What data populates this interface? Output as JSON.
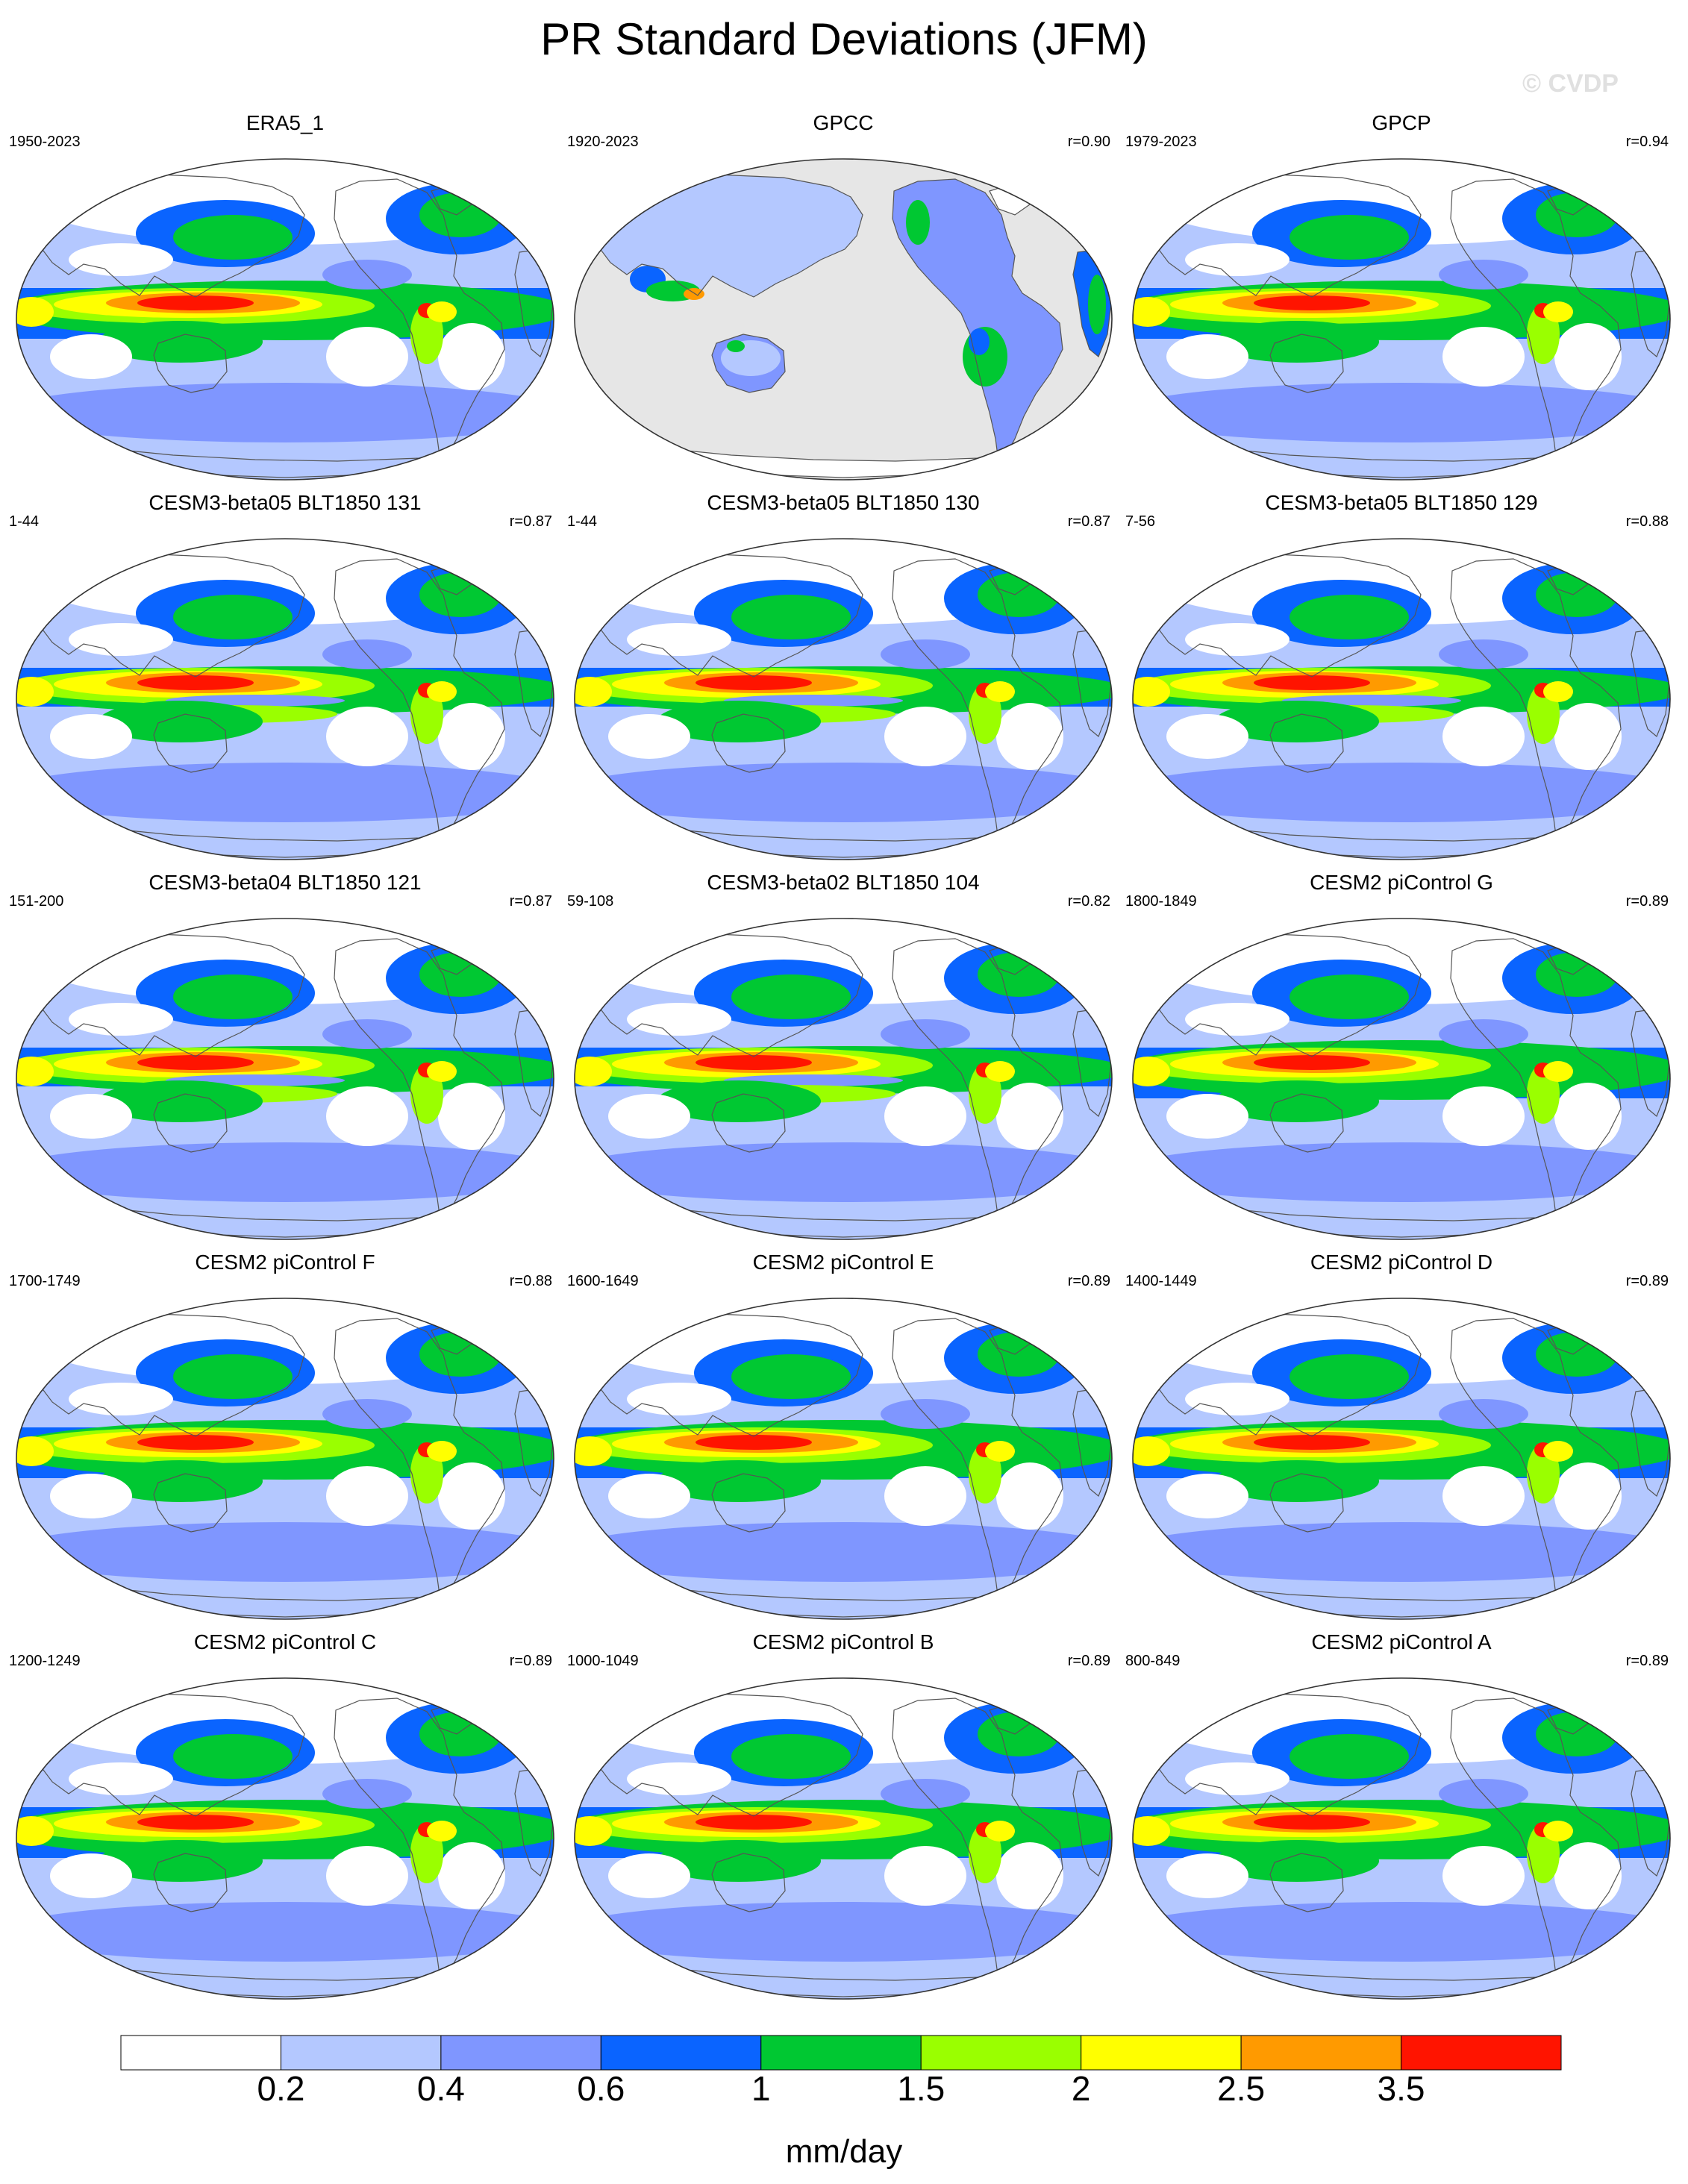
{
  "title": "PR Standard Deviations (JFM)",
  "watermark": "© CVDP",
  "panels": [
    {
      "name": "ERA5_1",
      "years": "1950-2023",
      "corr": "",
      "style": "obs_smooth"
    },
    {
      "name": "GPCC",
      "years": "1920-2023",
      "corr": "r=0.90",
      "style": "land_only"
    },
    {
      "name": "GPCP",
      "years": "1979-2023",
      "corr": "r=0.94",
      "style": "obs_smooth"
    },
    {
      "name": "CESM3-beta05 BLT1850 131",
      "years": "1-44",
      "corr": "r=0.87",
      "style": "model_double"
    },
    {
      "name": "CESM3-beta05 BLT1850 130",
      "years": "1-44",
      "corr": "r=0.87",
      "style": "model_double"
    },
    {
      "name": "CESM3-beta05 BLT1850 129",
      "years": "7-56",
      "corr": "r=0.88",
      "style": "model_double"
    },
    {
      "name": "CESM3-beta04 BLT1850 121",
      "years": "151-200",
      "corr": "r=0.87",
      "style": "model_double"
    },
    {
      "name": "CESM3-beta02 BLT1850 104",
      "years": "59-108",
      "corr": "r=0.82",
      "style": "model_double"
    },
    {
      "name": "CESM2 piControl G",
      "years": "1800-1849",
      "corr": "r=0.89",
      "style": "model_broad"
    },
    {
      "name": "CESM2 piControl F",
      "years": "1700-1749",
      "corr": "r=0.88",
      "style": "model_broad"
    },
    {
      "name": "CESM2 piControl E",
      "years": "1600-1649",
      "corr": "r=0.89",
      "style": "model_broad"
    },
    {
      "name": "CESM2 piControl D",
      "years": "1400-1449",
      "corr": "r=0.89",
      "style": "model_broad"
    },
    {
      "name": "CESM2 piControl C",
      "years": "1200-1249",
      "corr": "r=0.89",
      "style": "model_broad"
    },
    {
      "name": "CESM2 piControl B",
      "years": "1000-1049",
      "corr": "r=0.89",
      "style": "model_broad"
    },
    {
      "name": "CESM2 piControl A",
      "years": "800-849",
      "corr": "r=0.89",
      "style": "model_broad"
    }
  ],
  "colorbar": {
    "labels": [
      "0.2",
      "0.4",
      "0.6",
      "1",
      "1.5",
      "2",
      "2.5",
      "3.5"
    ],
    "colors": [
      "#ffffff",
      "#b4c8ff",
      "#7f96ff",
      "#0a64ff",
      "#00c832",
      "#9aff00",
      "#ffff00",
      "#ff9a00",
      "#ff1400"
    ],
    "unit": "mm/day"
  },
  "land_fill_color": "#e6e6e6",
  "coast_color": "#555555"
}
